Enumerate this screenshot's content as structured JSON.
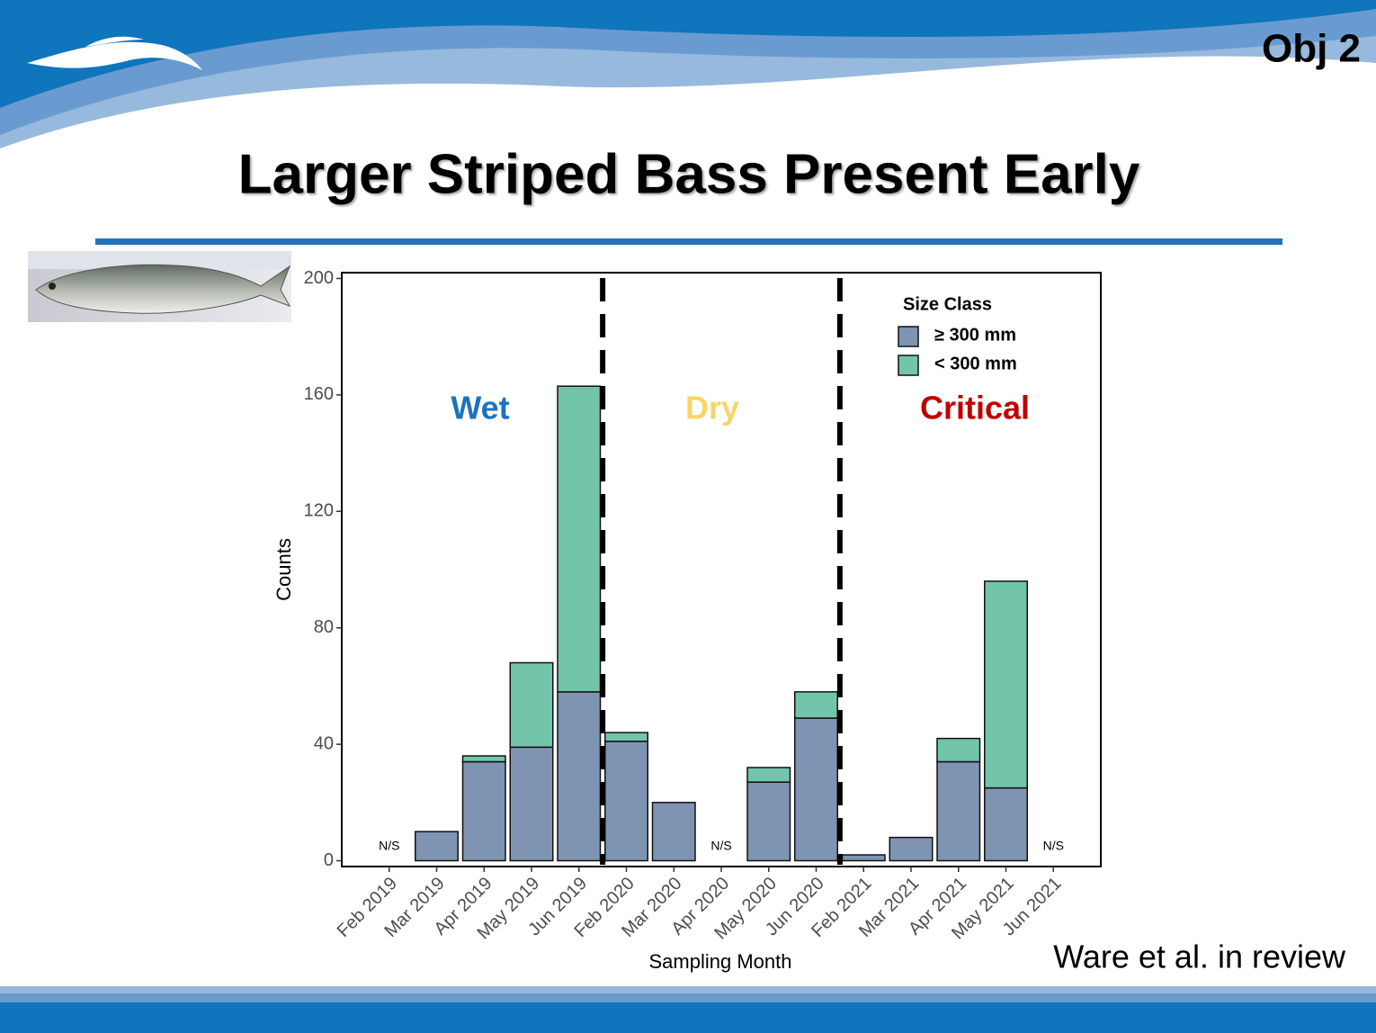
{
  "header": {
    "badge": "Obj 2",
    "title": "Larger Striped Bass Present Early"
  },
  "citation": "Ware et al. in review",
  "chart_data": {
    "type": "stacked-bar",
    "x_label": "Sampling Month",
    "y_label": "Counts",
    "categories": [
      "Feb 2019",
      "Mar 2019",
      "Apr 2019",
      "May 2019",
      "Jun 2019",
      "Feb 2020",
      "Mar 2020",
      "Apr 2020",
      "May 2020",
      "Jun 2020",
      "Feb 2021",
      "Mar 2021",
      "Apr 2021",
      "May 2021",
      "Jun 2021"
    ],
    "legend_title": "Size Class",
    "legend_position": "top-right",
    "series": [
      {
        "name": "≥ 300 mm",
        "color": "#7f93b2",
        "values": [
          null,
          10,
          34,
          39,
          58,
          41,
          20,
          null,
          27,
          49,
          2,
          8,
          34,
          25,
          null
        ],
        "value_labels": [
          "N/S",
          null,
          null,
          null,
          null,
          null,
          null,
          "N/S",
          null,
          null,
          null,
          null,
          null,
          null,
          "N/S"
        ]
      },
      {
        "name": "< 300 mm",
        "color": "#72c5aa",
        "values": [
          null,
          0,
          2,
          29,
          105,
          3,
          0,
          null,
          5,
          9,
          0,
          0,
          8,
          71,
          null
        ]
      }
    ],
    "annotations": [
      {
        "text": "Wet",
        "color": "#1b73bf"
      },
      {
        "text": "Dry",
        "color": "#f7d667"
      },
      {
        "text": "Critical",
        "color": "#c00000"
      }
    ],
    "ylim": [
      -2,
      202
    ],
    "yticks": [
      0,
      40,
      80,
      120,
      160,
      200
    ]
  }
}
